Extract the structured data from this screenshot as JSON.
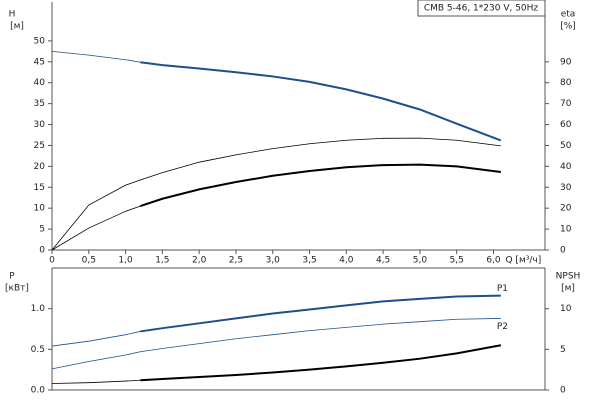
{
  "chart_data": [
    {
      "type": "line",
      "title": "CMB 5-46, 1*230 V, 50Hz",
      "ylabel": [
        "H",
        "[м]"
      ],
      "y2label": [
        "eta",
        "[%]"
      ],
      "xlabel": "Q [м³/ч]",
      "x": [
        0,
        0.5,
        1,
        1.2,
        1.5,
        2,
        2.5,
        3,
        3.5,
        4,
        4.5,
        5,
        5.5,
        6.1
      ],
      "xlim": [
        0,
        6.7
      ],
      "xticks": [
        0,
        {
          "value": 0.5,
          "label": "0,5"
        },
        {
          "value": 1,
          "label": "1,0"
        },
        {
          "value": 1.5,
          "label": "1,5"
        },
        {
          "value": 2,
          "label": "2,0"
        },
        {
          "value": 2.5,
          "label": "2,5"
        },
        {
          "value": 3,
          "label": "3,0"
        },
        {
          "value": 3.5,
          "label": "3,5"
        },
        {
          "value": 4,
          "label": "4,0"
        },
        {
          "value": 4.5,
          "label": "4,5"
        },
        {
          "value": 5,
          "label": "5,0"
        },
        {
          "value": 5.5,
          "label": "5,5"
        },
        {
          "value": 6,
          "label": "6,0"
        }
      ],
      "ylim": [
        0,
        59.3
      ],
      "yticks": [
        0,
        5,
        10,
        15,
        20,
        25,
        30,
        35,
        40,
        45,
        50
      ],
      "y2lim": [
        0,
        118.6
      ],
      "y2ticks": [
        0,
        10,
        20,
        30,
        40,
        50,
        60,
        70,
        80,
        90
      ],
      "series": [
        {
          "color": "#1f4e8c",
          "linewidth": 0.8,
          "values": [
            47.5,
            46.6,
            45.5,
            44.9,
            null,
            null,
            null,
            null,
            null,
            null,
            null,
            null,
            null,
            null
          ]
        },
        {
          "color": "#1f4e8c",
          "linewidth": 2,
          "values": [
            null,
            null,
            null,
            44.9,
            44.2,
            43.4,
            42.5,
            41.5,
            40.2,
            38.4,
            36.2,
            33.6,
            30.2,
            26.2
          ]
        },
        {
          "color": "#000000",
          "linewidth": 0.8,
          "axis": "y2",
          "values": [
            0,
            21.5,
            31,
            33.5,
            37,
            42,
            45.5,
            48.5,
            50.8,
            52.5,
            53.4,
            53.5,
            52.5,
            49.8
          ]
        },
        {
          "color": "#000000",
          "linewidth": 0.8,
          "axis": "y2",
          "values": [
            0,
            10.5,
            18.5,
            21,
            null,
            null,
            null,
            null,
            null,
            null,
            null,
            null,
            null,
            null
          ]
        },
        {
          "color": "#000000",
          "linewidth": 2,
          "axis": "y2",
          "values": [
            null,
            null,
            null,
            21,
            24.5,
            29,
            32.5,
            35.5,
            37.8,
            39.6,
            40.6,
            40.8,
            40,
            37.3
          ]
        }
      ]
    },
    {
      "type": "line",
      "ylabel": [
        "P",
        "[кВт]"
      ],
      "y2label": [
        "NPSH",
        "[м]"
      ],
      "x": [
        0,
        0.5,
        1,
        1.2,
        1.5,
        2,
        2.5,
        3,
        3.5,
        4,
        4.5,
        5,
        5.5,
        6.1
      ],
      "xlim": [
        0,
        6.7
      ],
      "ylim": [
        0,
        1.5
      ],
      "yticks": [
        {
          "value": 0,
          "label": "0.0"
        },
        0.5,
        {
          "value": 1,
          "label": "1.0"
        }
      ],
      "y2lim": [
        0,
        15
      ],
      "y2ticks": [
        0,
        5,
        10
      ],
      "series": [
        {
          "color": "#1f4e8c",
          "linewidth": 0.8,
          "values": [
            0.54,
            0.6,
            0.68,
            0.72,
            null,
            null,
            null,
            null,
            null,
            null,
            null,
            null,
            null,
            null
          ]
        },
        {
          "name": "P1",
          "color": "#1f4e8c",
          "linewidth": 2,
          "values": [
            null,
            null,
            null,
            0.72,
            0.76,
            0.82,
            0.88,
            0.94,
            0.99,
            1.04,
            1.09,
            1.12,
            1.15,
            1.16
          ]
        },
        {
          "name": "P2",
          "color": "#1f4e8c",
          "linewidth": 0.8,
          "values": [
            0.26,
            0.35,
            0.43,
            0.47,
            0.51,
            0.57,
            0.63,
            0.68,
            0.73,
            0.77,
            0.81,
            0.84,
            0.87,
            0.88
          ]
        },
        {
          "color": "#000000",
          "linewidth": 0.8,
          "axis": "y2",
          "values": [
            0.8,
            0.9,
            1.1,
            1.2,
            null,
            null,
            null,
            null,
            null,
            null,
            null,
            null,
            null,
            null
          ]
        },
        {
          "color": "#000000",
          "linewidth": 2,
          "axis": "y2",
          "values": [
            null,
            null,
            null,
            1.2,
            1.35,
            1.6,
            1.85,
            2.15,
            2.5,
            2.9,
            3.35,
            3.85,
            4.5,
            5.5
          ]
        }
      ]
    }
  ]
}
